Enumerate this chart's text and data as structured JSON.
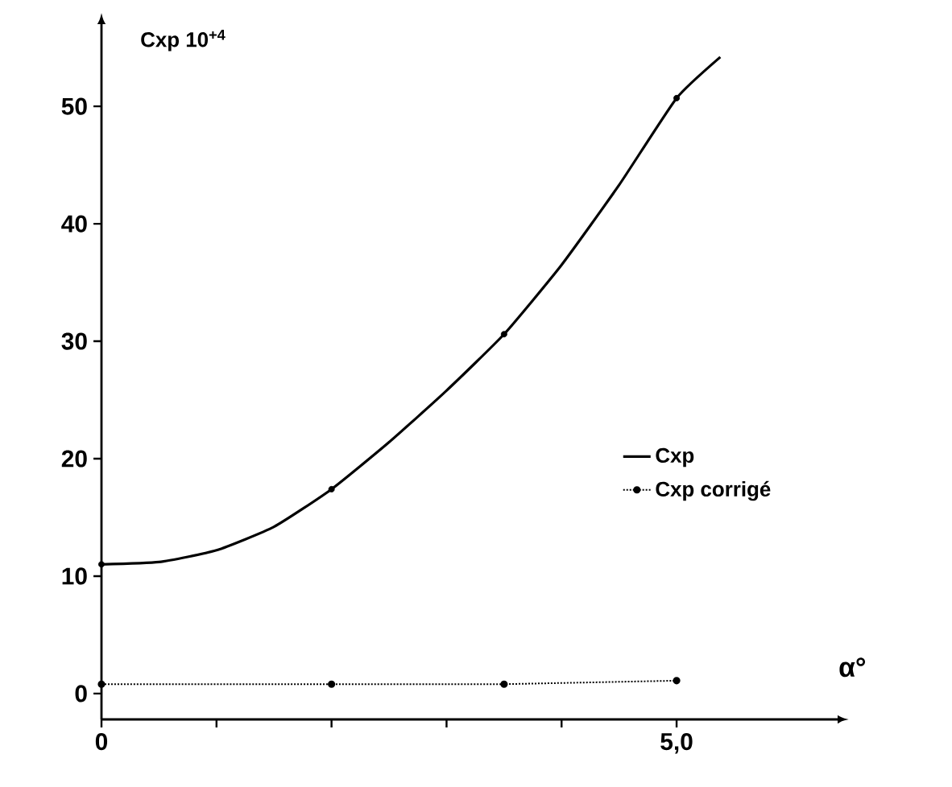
{
  "chart_data": {
    "type": "line",
    "xlabel": "α°",
    "ylabel": "Cxp  10$^{+4}$",
    "xlim": [
      0,
      6.4
    ],
    "ylim": [
      -2.2,
      57
    ],
    "xticks": [
      0,
      {
        "value": 1,
        "label": null
      },
      {
        "value": 2,
        "label": null
      },
      {
        "value": 3,
        "label": null
      },
      {
        "value": 4,
        "label": null
      },
      {
        "value": 5,
        "label": "5,0"
      }
    ],
    "yticks": [
      0,
      10,
      20,
      30,
      40,
      50
    ],
    "grid": false,
    "legend": "right",
    "series": [
      {
        "name": "Cxp",
        "color": "#000000",
        "line_style": "solid",
        "marker": "none",
        "x": [
          0,
          0.5,
          1,
          1.5,
          2,
          2.5,
          3,
          3.5,
          4,
          4.5,
          5,
          5.38
        ],
        "values": [
          11,
          11.2,
          12.2,
          14.2,
          17.4,
          21.4,
          25.8,
          30.6,
          36.5,
          43.3,
          50.7,
          54.2
        ]
      },
      {
        "type": "scatter",
        "color": "#000000",
        "marker": "circle",
        "x": [
          0,
          2,
          3.5,
          5
        ],
        "values": [
          11,
          17.4,
          30.6,
          50.7
        ]
      },
      {
        "name": "Cxp corrigé",
        "color": "#000000",
        "line_style": "dotted",
        "marker": "circle",
        "x": [
          0,
          2,
          3.5,
          5
        ],
        "values": [
          0.8,
          0.8,
          0.8,
          1.1
        ]
      }
    ]
  }
}
